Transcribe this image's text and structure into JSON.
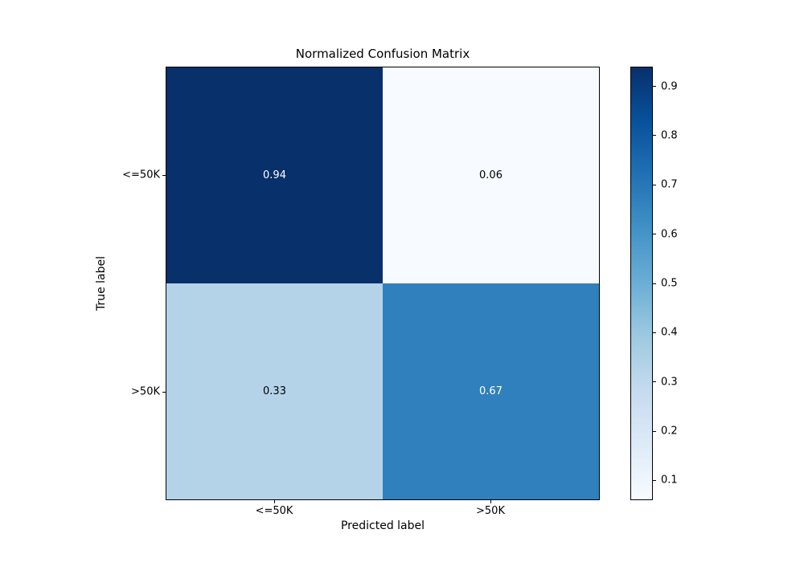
{
  "chart_data": {
    "type": "heatmap",
    "title": "Normalized Confusion Matrix",
    "xlabel": "Predicted label",
    "ylabel": "True label",
    "x_tick_labels": [
      "<=50K",
      ">50K"
    ],
    "y_tick_labels": [
      "<=50K",
      ">50K"
    ],
    "values": [
      [
        0.94,
        0.06
      ],
      [
        0.33,
        0.67
      ]
    ],
    "cell_labels": [
      [
        "0.94",
        "0.06"
      ],
      [
        "0.33",
        "0.67"
      ]
    ],
    "cell_colors": [
      [
        "#08306b",
        "#f7fbff"
      ],
      [
        "#b4d3e9",
        "#3080bd"
      ]
    ],
    "cell_text_colors": [
      [
        "#ffffff",
        "#000000"
      ],
      [
        "#000000",
        "#ffffff"
      ]
    ],
    "colormap": "Blues",
    "grid": false,
    "legend_position": "right-colorbar",
    "colorbar": {
      "min": 0.06,
      "max": 0.94,
      "ticks": [
        0.9,
        0.8,
        0.7,
        0.6,
        0.5,
        0.4,
        0.3,
        0.2,
        0.1
      ],
      "tick_labels": [
        "0.9",
        "0.8",
        "0.7",
        "0.6",
        "0.5",
        "0.4",
        "0.3",
        "0.2",
        "0.1"
      ],
      "gradient_stops": [
        {
          "pos": 0,
          "color": "#f7fbff"
        },
        {
          "pos": 12.5,
          "color": "#deebf7"
        },
        {
          "pos": 25,
          "color": "#c6dbef"
        },
        {
          "pos": 37.5,
          "color": "#9ecae1"
        },
        {
          "pos": 50,
          "color": "#6baed6"
        },
        {
          "pos": 62.5,
          "color": "#4292c6"
        },
        {
          "pos": 75,
          "color": "#2171b5"
        },
        {
          "pos": 87.5,
          "color": "#08519c"
        },
        {
          "pos": 100,
          "color": "#08306b"
        }
      ]
    }
  }
}
